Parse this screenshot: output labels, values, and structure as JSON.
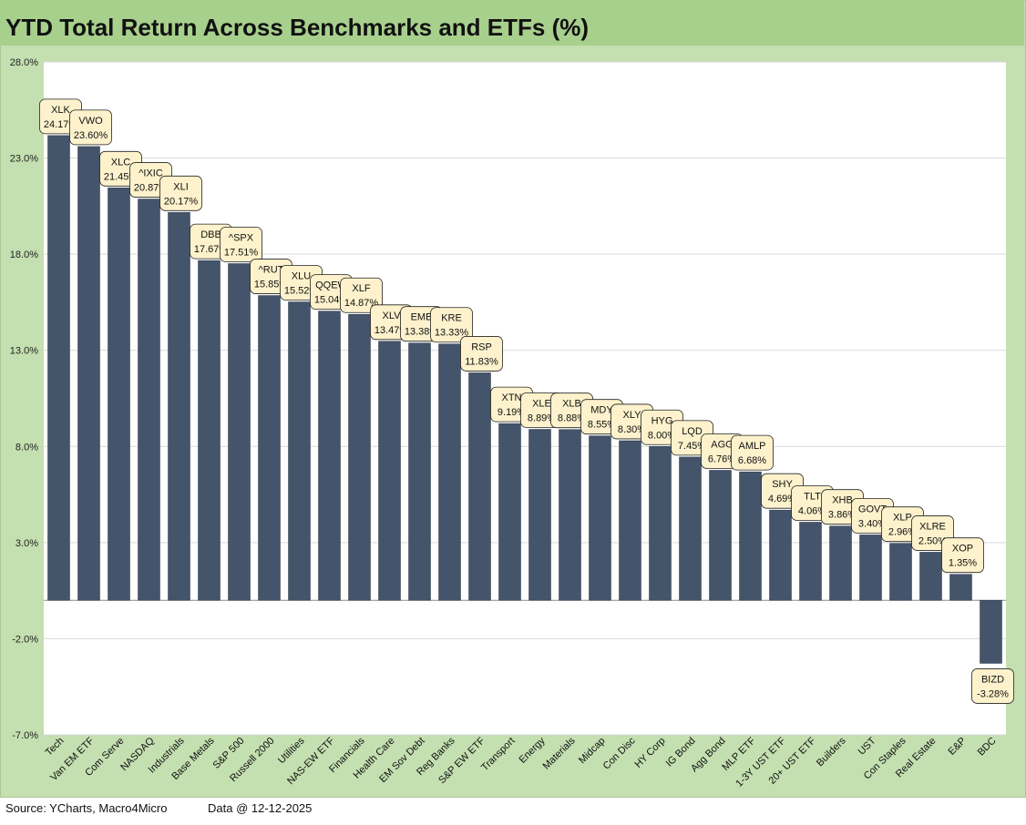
{
  "footer": {
    "source": "Source: YCharts, Macro4Micro",
    "date": "Data @ 12-12-2025"
  },
  "colors": {
    "bar": "#44546a",
    "band": "#a8d08d",
    "frame": "#c4dfb0",
    "callout": "#fdf2cc"
  },
  "chart_data": {
    "type": "bar",
    "title": "YTD Total Return Across Benchmarks and ETFs (%)",
    "xlabel": "",
    "ylabel": "",
    "ylim": [
      -7,
      28
    ],
    "yticks": [
      "28.0%",
      "23.0%",
      "18.0%",
      "13.0%",
      "8.0%",
      "3.0%",
      "-2.0%",
      "-7.0%"
    ],
    "grid": true,
    "legend": "none",
    "categories": [
      "Tech",
      "Van EM ETF",
      "Com Serve",
      "NASDAQ",
      "Industrials",
      "Base Metals",
      "S&P 500",
      "Russell 2000",
      "Utilities",
      "NAS-EW ETF",
      "Financials",
      "Health Care",
      "EM Sov Debt",
      "Reg Banks",
      "S&P EW ETF",
      "Transport",
      "Energy",
      "Materials",
      "Midcap",
      "Con Disc",
      "HY Corp",
      "IG Bond",
      "Agg Bond",
      "MLP ETF",
      "1-3Y UST ETF",
      "20+ UST ETF",
      "Builders",
      "UST",
      "Con Staples",
      "Real Estate",
      "E&P",
      "BDC"
    ],
    "tickers": [
      "XLK",
      "VWO",
      "XLC",
      "^IXIC",
      "XLI",
      "DBB",
      "^SPX",
      "^RUT",
      "XLU",
      "QQEW",
      "XLF",
      "XLV",
      "EMB",
      "KRE",
      "RSP",
      "XTN",
      "XLE",
      "XLB",
      "MDY",
      "XLY",
      "HYG",
      "LQD",
      "AGG",
      "AMLP",
      "SHY",
      "TLT",
      "XHB",
      "GOVT",
      "XLP",
      "XLRE",
      "XOP",
      "BIZD"
    ],
    "data_labels": [
      "24.17%",
      "23.60%",
      "21.45%",
      "20.87%",
      "20.17%",
      "17.67%",
      "17.51%",
      "15.85%",
      "15.52%",
      "15.04%",
      "14.87%",
      "13.47%",
      "13.38%",
      "13.33%",
      "11.83%",
      "9.19%",
      "8.89%",
      "8.88%",
      "8.55%",
      "8.30%",
      "8.00%",
      "7.45%",
      "6.76%",
      "6.68%",
      "4.69%",
      "4.06%",
      "3.86%",
      "3.40%",
      "2.96%",
      "2.50%",
      "1.35%",
      "-3.28%"
    ],
    "values": [
      24.17,
      23.6,
      21.45,
      20.87,
      20.17,
      17.67,
      17.51,
      15.85,
      15.52,
      15.04,
      14.87,
      13.47,
      13.38,
      13.33,
      11.83,
      9.19,
      8.89,
      8.88,
      8.55,
      8.3,
      8.0,
      7.45,
      6.76,
      6.68,
      4.69,
      4.06,
      3.86,
      3.4,
      2.96,
      2.5,
      1.35,
      -3.28
    ]
  }
}
